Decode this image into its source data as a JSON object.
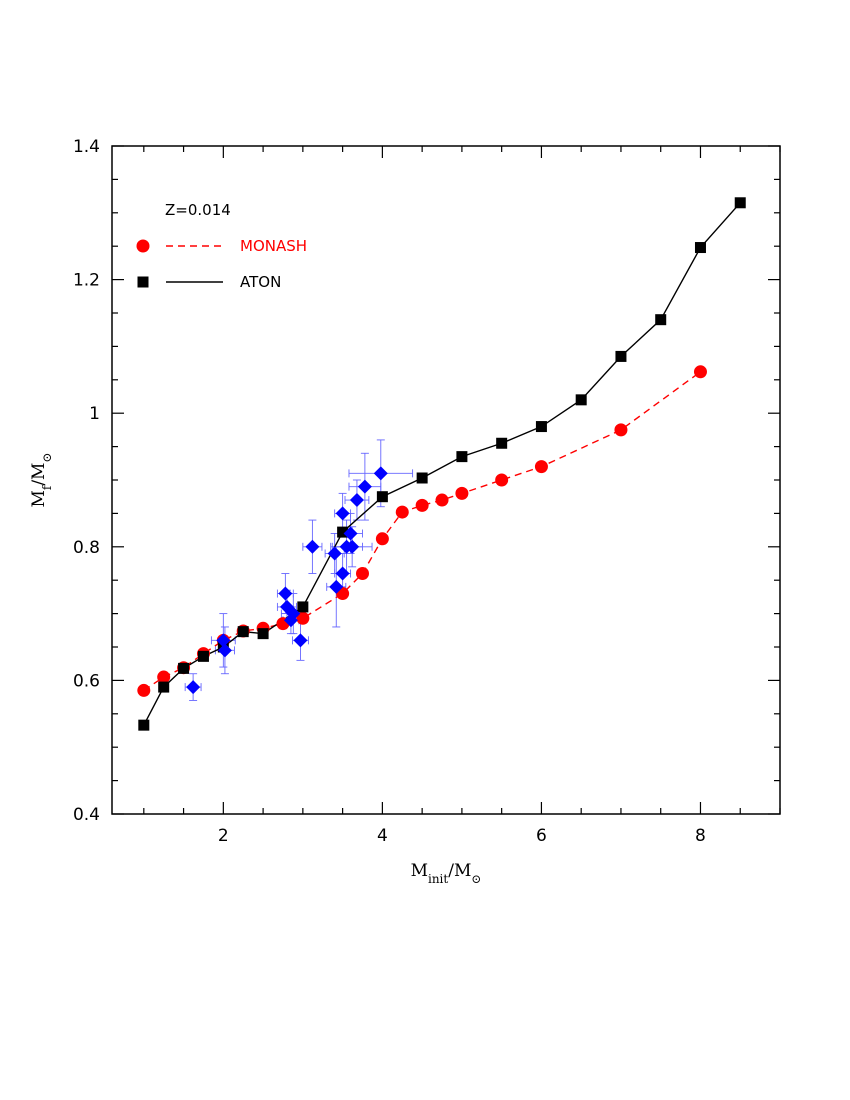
{
  "chart_data": {
    "type": "scatter",
    "xlabel": "M_init/M_⊙",
    "ylabel": "M_f/M_⊙",
    "xlim": [
      0.6,
      9.0
    ],
    "ylim": [
      0.4,
      1.4
    ],
    "xticks_major": [
      2,
      4,
      6,
      8
    ],
    "xticks_minor_step": 0.5,
    "yticks_major": [
      0.4,
      0.6,
      0.8,
      1.0,
      1.2,
      1.4
    ],
    "ytick_labels": [
      "0.4",
      "0.6",
      "0.8",
      "1",
      "1.2",
      "1.4"
    ],
    "yticks_minor_step": 0.05,
    "grid": false,
    "legend": {
      "position": "top-left",
      "title": "Z=0.014",
      "entries": [
        {
          "label": "MONASH",
          "color": "#ff0000",
          "marker": "circle",
          "line": "dashed"
        },
        {
          "label": "ATON",
          "color": "#000000",
          "marker": "square",
          "line": "solid"
        }
      ]
    },
    "series": [
      {
        "name": "MONASH",
        "color": "#ff0000",
        "marker": "circle",
        "line": "dashed",
        "x": [
          1.0,
          1.25,
          1.5,
          1.75,
          2.0,
          2.25,
          2.5,
          2.75,
          3.0,
          3.5,
          3.75,
          4.0,
          4.25,
          4.5,
          4.75,
          5.0,
          5.5,
          6.0,
          7.0,
          8.0
        ],
        "y": [
          0.585,
          0.605,
          0.619,
          0.64,
          0.66,
          0.674,
          0.678,
          0.685,
          0.693,
          0.73,
          0.76,
          0.812,
          0.852,
          0.862,
          0.87,
          0.88,
          0.9,
          0.92,
          0.975,
          1.062
        ]
      },
      {
        "name": "ATON",
        "color": "#000000",
        "marker": "square",
        "line": "solid",
        "x": [
          1.0,
          1.25,
          1.5,
          1.75,
          2.0,
          2.25,
          2.5,
          3.0,
          3.5,
          4.0,
          4.5,
          5.0,
          5.5,
          6.0,
          6.5,
          7.0,
          7.5,
          8.0,
          8.5
        ],
        "y": [
          0.533,
          0.59,
          0.618,
          0.636,
          0.65,
          0.673,
          0.67,
          0.71,
          0.822,
          0.875,
          0.903,
          0.935,
          0.955,
          0.98,
          1.02,
          1.085,
          1.14,
          1.248,
          1.315
        ]
      },
      {
        "color": "#0000ff",
        "marker": "diamond",
        "line": "none",
        "points": [
          {
            "x": 1.62,
            "y": 0.59,
            "xerr": 0.1,
            "yerr": 0.02
          },
          {
            "x": 2.0,
            "y": 0.66,
            "xerr": 0.15,
            "yerr": 0.04
          },
          {
            "x": 2.02,
            "y": 0.645,
            "xerr": 0.12,
            "yerr": 0.035
          },
          {
            "x": 2.78,
            "y": 0.73,
            "xerr": 0.1,
            "yerr": 0.03
          },
          {
            "x": 2.8,
            "y": 0.71,
            "xerr": 0.12,
            "yerr": 0.025
          },
          {
            "x": 2.85,
            "y": 0.69,
            "xerr": 0.1,
            "yerr": 0.02
          },
          {
            "x": 2.88,
            "y": 0.7,
            "xerr": 0.15,
            "yerr": 0.03
          },
          {
            "x": 2.97,
            "y": 0.66,
            "xerr": 0.1,
            "yerr": 0.03
          },
          {
            "x": 3.12,
            "y": 0.8,
            "xerr": 0.12,
            "yerr": 0.04
          },
          {
            "x": 3.4,
            "y": 0.79,
            "xerr": 0.12,
            "yerr": 0.03
          },
          {
            "x": 3.42,
            "y": 0.74,
            "xerr": 0.12,
            "yerr": 0.06
          },
          {
            "x": 3.5,
            "y": 0.85,
            "xerr": 0.1,
            "yerr": 0.03
          },
          {
            "x": 3.5,
            "y": 0.76,
            "xerr": 0.1,
            "yerr": 0.03
          },
          {
            "x": 3.55,
            "y": 0.8,
            "xerr": 0.2,
            "yerr": 0.04
          },
          {
            "x": 3.6,
            "y": 0.82,
            "xerr": 0.15,
            "yerr": 0.03
          },
          {
            "x": 3.62,
            "y": 0.8,
            "xerr": 0.25,
            "yerr": 0.03
          },
          {
            "x": 3.68,
            "y": 0.87,
            "xerr": 0.15,
            "yerr": 0.03
          },
          {
            "x": 3.78,
            "y": 0.89,
            "xerr": 0.2,
            "yerr": 0.05
          },
          {
            "x": 3.98,
            "y": 0.91,
            "xerr": 0.4,
            "yerr": 0.05
          }
        ]
      }
    ]
  }
}
